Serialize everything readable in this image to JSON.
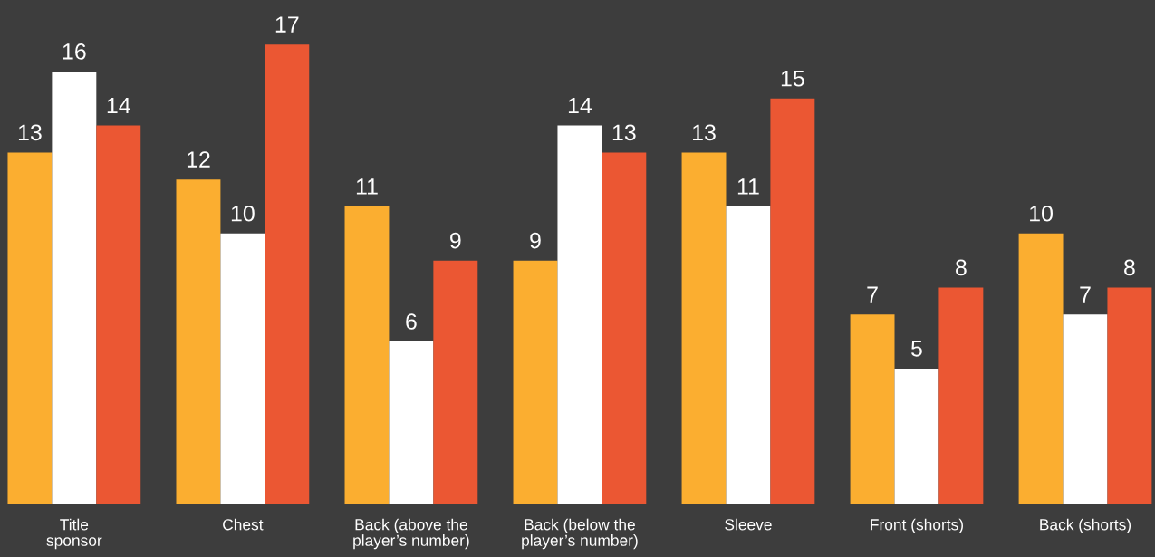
{
  "chart_data": {
    "type": "bar",
    "categories": [
      "Title\nsponsor",
      "Chest",
      "Back (above the\nplayer’s number)",
      "Back (below the\nplayer’s number)",
      "Sleeve",
      "Front (shorts)",
      "Back (shorts)"
    ],
    "series": [
      {
        "color": "#fbae30",
        "values": [
          13,
          12,
          11,
          9,
          13,
          7,
          10
        ]
      },
      {
        "color": "#ffffff",
        "values": [
          16,
          10,
          6,
          14,
          11,
          5,
          7
        ]
      },
      {
        "color": "#eb5733",
        "values": [
          14,
          17,
          9,
          13,
          15,
          8,
          8
        ]
      }
    ],
    "data_labels": true,
    "grid": false,
    "legend": false
  }
}
